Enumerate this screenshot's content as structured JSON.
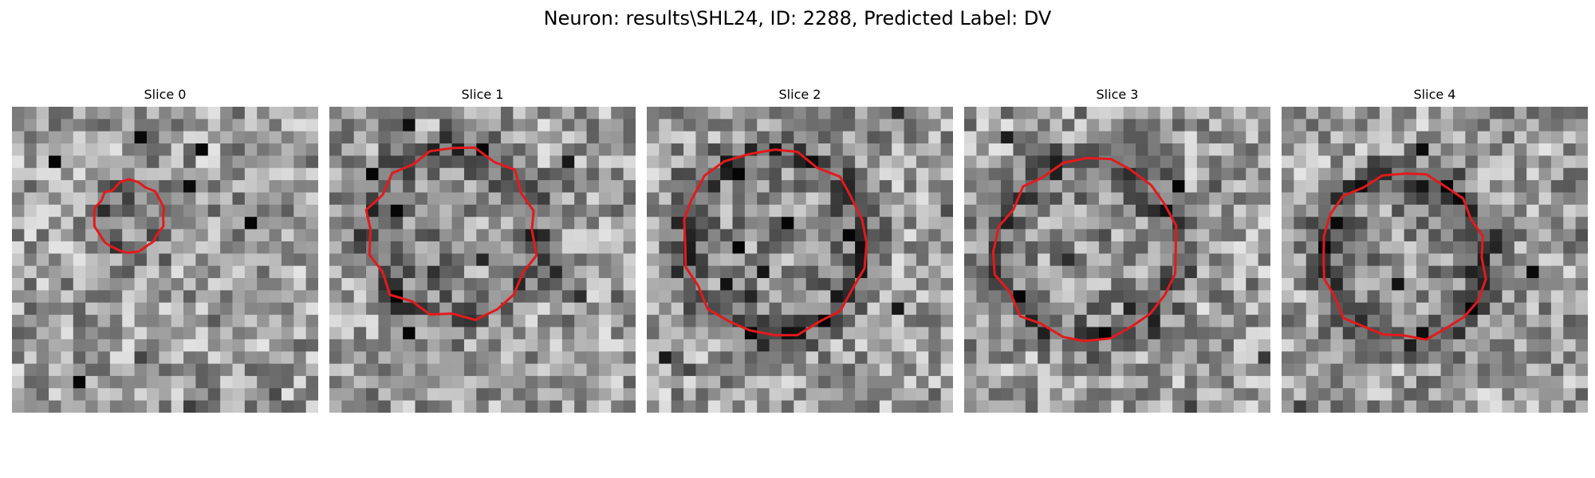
{
  "figure": {
    "title": "Neuron: results\\SHL24, ID: 2288, Predicted Label: DV"
  },
  "contour_color": "#e31a1c",
  "colormap": "gray",
  "slices": [
    {
      "title": "Slice 0",
      "seed": 11,
      "contour_center": [
        9.6,
        9.0
      ],
      "contour_radius": 2.9,
      "dark_ring": 0.15
    },
    {
      "title": "Slice 1",
      "seed": 23,
      "contour_center": [
        10.0,
        10.3
      ],
      "contour_radius": 7.1,
      "dark_ring": 0.22
    },
    {
      "title": "Slice 2",
      "seed": 37,
      "contour_center": [
        10.3,
        11.2
      ],
      "contour_radius": 7.6,
      "dark_ring": 0.28
    },
    {
      "title": "Slice 3",
      "seed": 41,
      "contour_center": [
        10.0,
        11.7
      ],
      "contour_radius": 7.5,
      "dark_ring": 0.26
    },
    {
      "title": "Slice 4",
      "seed": 53,
      "contour_center": [
        10.0,
        12.3
      ],
      "contour_radius": 6.8,
      "dark_ring": 0.3
    }
  ]
}
